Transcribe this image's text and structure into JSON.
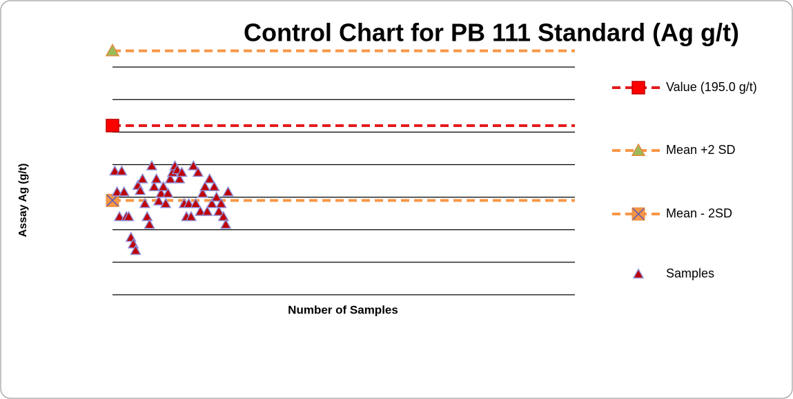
{
  "chart_data": {
    "type": "scatter",
    "title": "Control Chart for PB 111 Standard (Ag g/t)",
    "x_label": "Number of Samples",
    "y_label": "Assay Ag (g/t)",
    "xlim": [
      0,
      200
    ],
    "ylim": [
      65,
      265
    ],
    "yticks": [
      65,
      90,
      115,
      140,
      165,
      190,
      215,
      240
    ],
    "grid": true,
    "legend": "right",
    "series": [
      {
        "name": "Value (195.0 g/t)",
        "kind": "line",
        "marker": "square",
        "color": "#e41a1c",
        "marker_color": "#ff0000",
        "x": [
          0,
          200
        ],
        "values": [
          195,
          195
        ]
      },
      {
        "name": "Mean +2 SD",
        "kind": "line",
        "marker": "triangle",
        "color": "#f79646",
        "marker_color": "#9bbb59",
        "x": [
          0,
          200
        ],
        "values": [
          252.5,
          252.5
        ]
      },
      {
        "name": "Mean - 2SD",
        "kind": "line",
        "marker": "xsquare",
        "color": "#f79646",
        "marker_color": "#f79646",
        "x": [
          0,
          200
        ],
        "values": [
          137.5,
          137.5
        ]
      },
      {
        "name": "Samples",
        "kind": "points",
        "marker": "triangle",
        "color": "#c00000",
        "x": [
          1,
          2,
          3,
          4,
          5,
          6,
          7,
          8,
          9,
          10,
          11,
          12,
          13,
          14,
          15,
          16,
          17,
          18,
          19,
          20,
          21,
          22,
          23,
          24,
          25,
          26,
          27,
          28,
          29,
          30,
          31,
          32,
          33,
          34,
          35,
          36,
          37,
          38,
          39,
          40,
          41,
          42,
          43,
          44,
          45,
          46,
          47,
          48,
          49,
          50
        ],
        "values": [
          160,
          144,
          125,
          160,
          144,
          125,
          125,
          109,
          104,
          99,
          149,
          145,
          154,
          135,
          125,
          119,
          164,
          148,
          154,
          137,
          143,
          148,
          135,
          143,
          154,
          159,
          164,
          161,
          154,
          159,
          135,
          125,
          135,
          125,
          164,
          135,
          159,
          129,
          143,
          148,
          129,
          154,
          135,
          148,
          140,
          129,
          135,
          125,
          119,
          144
        ]
      }
    ]
  }
}
